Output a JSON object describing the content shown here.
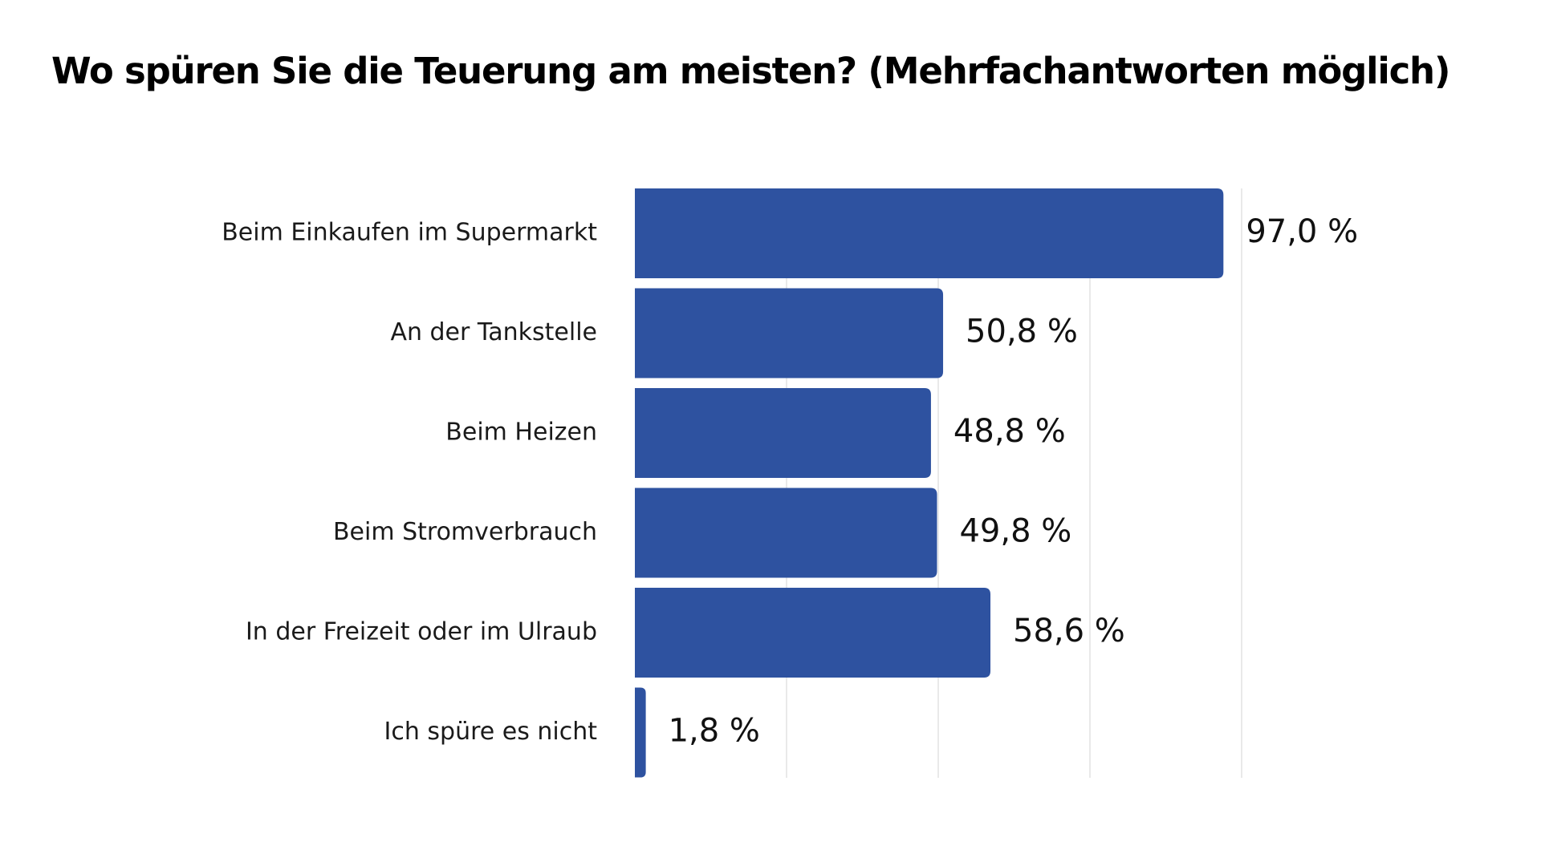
{
  "chart_data": {
    "type": "bar",
    "orientation": "horizontal",
    "title": "Wo spüren Sie die Teuerung am meisten? (Mehrfachantworten möglich)",
    "categories": [
      "Beim Einkaufen im Supermarkt",
      "An der Tankstelle",
      "Beim Heizen",
      "Beim Stromverbrauch",
      "In der Freizeit oder im Ulraub",
      "Ich spüre es nicht"
    ],
    "values": [
      97.0,
      50.8,
      48.8,
      49.8,
      58.6,
      1.8
    ],
    "value_labels": [
      "97,0 %",
      "50,8 %",
      "48,8 %",
      "49,8 %",
      "58,6 %",
      "1,8 %"
    ],
    "xlim": [
      0,
      100
    ],
    "grid": true,
    "legend": "none",
    "colors": {
      "bar": "#2e52a0",
      "grid": "#e2e2e2"
    }
  }
}
